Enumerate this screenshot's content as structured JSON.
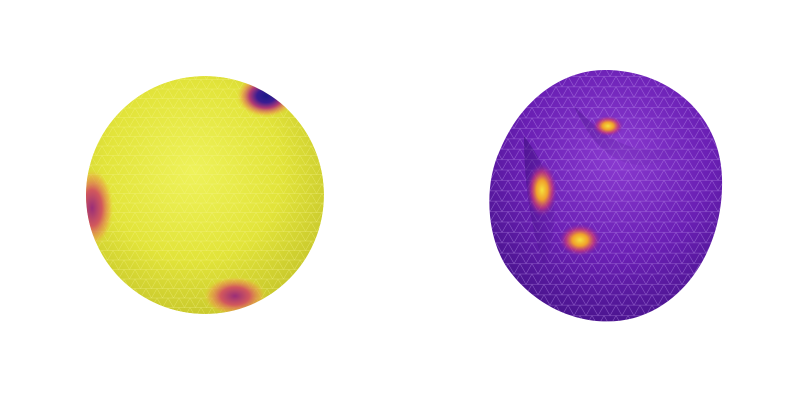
{
  "figures": [
    {
      "id": "sphere-mesh",
      "surface_color": "#e2e43a",
      "mesh_line_color": "#f2f07a",
      "hotspot_colors": [
        "#e26a4a",
        "#a8307a",
        "#2c1a8a"
      ]
    },
    {
      "id": "deformed-mesh",
      "surface_color": "#6a1fb4",
      "mesh_line_color": "#b789e6",
      "hotspot_colors": [
        "#f0d236",
        "#f08a2c",
        "#c2387a"
      ]
    }
  ]
}
